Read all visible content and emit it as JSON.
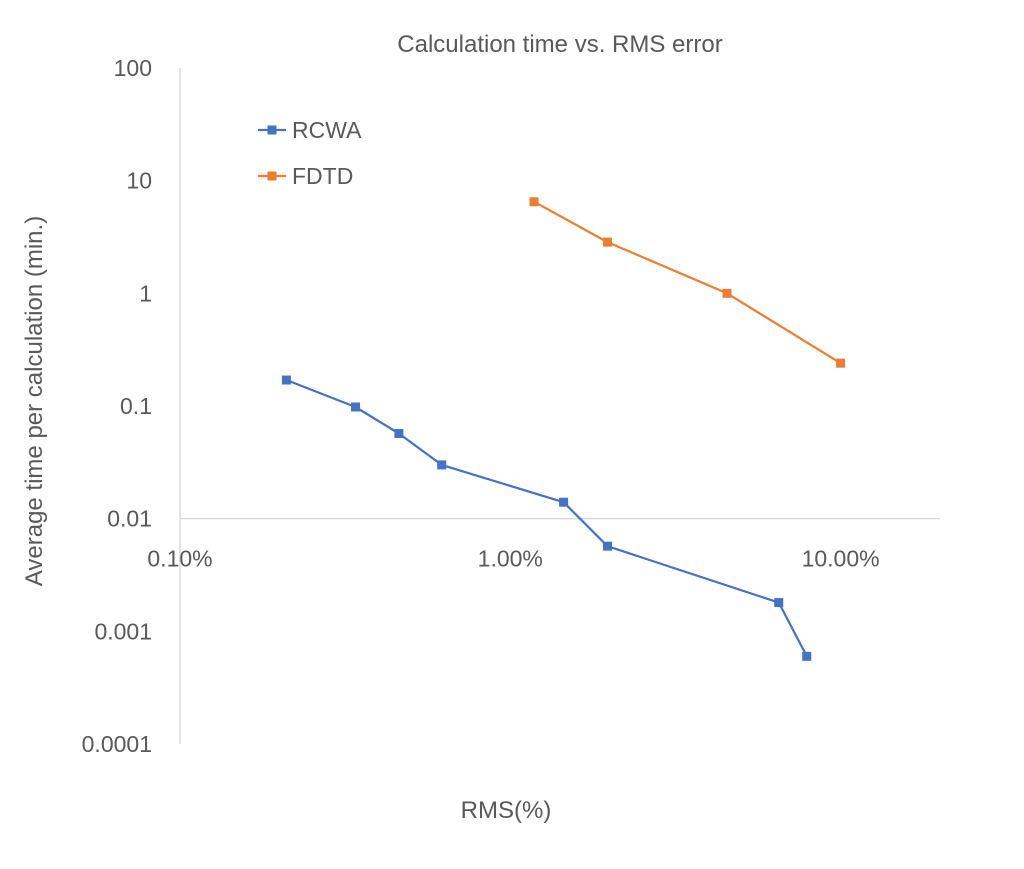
{
  "chart_data": {
    "type": "line",
    "title": "Calculation time vs. RMS error",
    "xlabel": "RMS(%)",
    "ylabel": "Average time per calculation (min.)",
    "xscale": "log",
    "yscale": "log",
    "xlim": [
      0.001,
      0.2
    ],
    "ylim": [
      0.0001,
      100
    ],
    "x_crosses_y_at": 0.01,
    "xticks": [
      0.001,
      0.01,
      0.1
    ],
    "xtick_labels": [
      "0.10%",
      "1.00%",
      "10.00%"
    ],
    "yticks": [
      0.0001,
      0.001,
      0.01,
      0.1,
      1,
      10,
      100
    ],
    "ytick_labels": [
      "0.0001",
      "0.001",
      "0.01",
      "0.1",
      "1",
      "10",
      "100"
    ],
    "legend_position": "top-left",
    "series": [
      {
        "name": "RCWA",
        "color": "#4472C4",
        "marker": "square",
        "x": [
          0.0021,
          0.0034,
          0.0046,
          0.0062,
          0.0145,
          0.0197,
          0.065,
          0.079
        ],
        "y": [
          0.17,
          0.098,
          0.057,
          0.03,
          0.014,
          0.0057,
          0.0018,
          0.0006
        ]
      },
      {
        "name": "FDTD",
        "color": "#ED7D31",
        "marker": "square",
        "x": [
          0.0118,
          0.0197,
          0.0453,
          0.1
        ],
        "y": [
          6.5,
          2.85,
          1.0,
          0.24
        ]
      }
    ]
  }
}
